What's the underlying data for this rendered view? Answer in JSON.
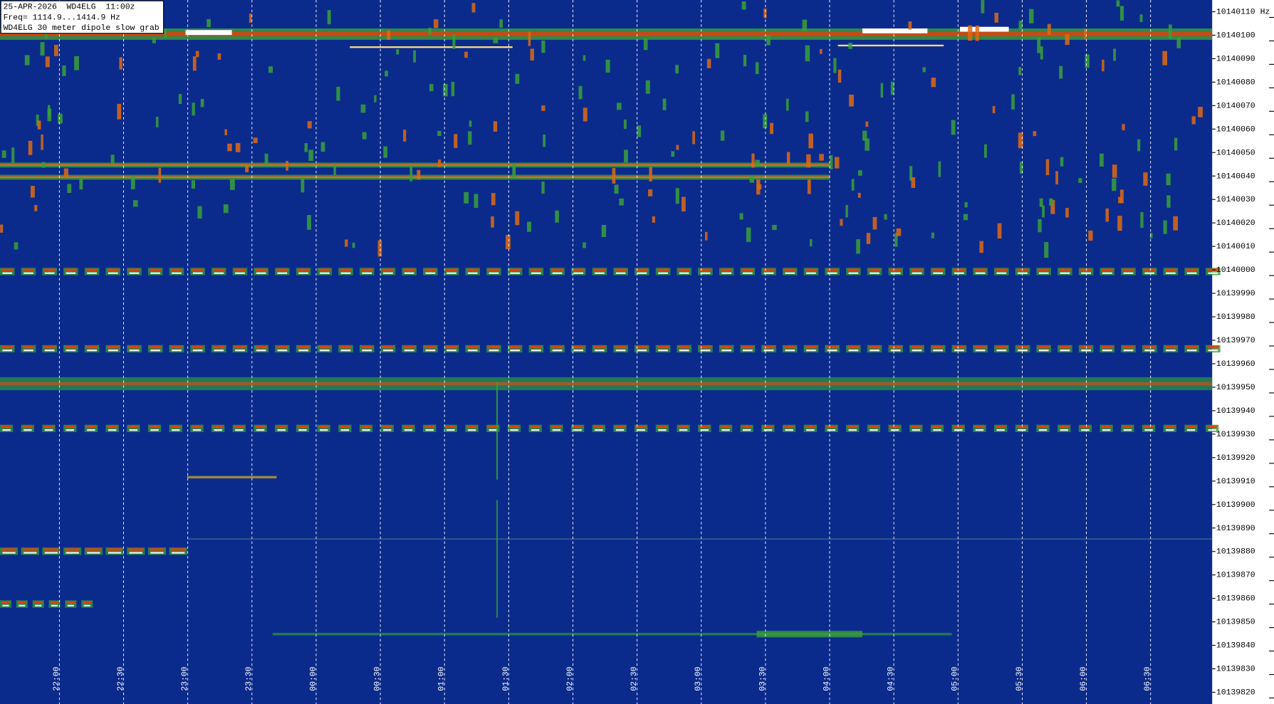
{
  "header": {
    "lines": [
      "25-APR-2026  WD4ELG  11:00z",
      "Freq= 1114.9...1414.9 Hz",
      "WD4ELG 30 meter dipole slow grab"
    ]
  },
  "chart_data": {
    "type": "spectrogram",
    "x": [
      "22:00",
      "22:30",
      "23:00",
      "23:30",
      "00:00",
      "00:30",
      "01:00",
      "01:30",
      "02:00",
      "02:30",
      "03:00",
      "03:30",
      "04:00",
      "04:30",
      "05:00",
      "05:30",
      "06:00",
      "06:30"
    ],
    "ylim": [
      10139815,
      10140115
    ],
    "yticks": [
      10139820,
      10139830,
      10139840,
      10139850,
      10139860,
      10139870,
      10139880,
      10139890,
      10139900,
      10139910,
      10139920,
      10139930,
      10139940,
      10139950,
      10139960,
      10139970,
      10139980,
      10139990,
      10140000,
      10140010,
      10140020,
      10140030,
      10140040,
      10140050,
      10140060,
      10140070,
      10140080,
      10140090,
      10140100,
      10140110
    ],
    "y_unit": "Hz"
  }
}
